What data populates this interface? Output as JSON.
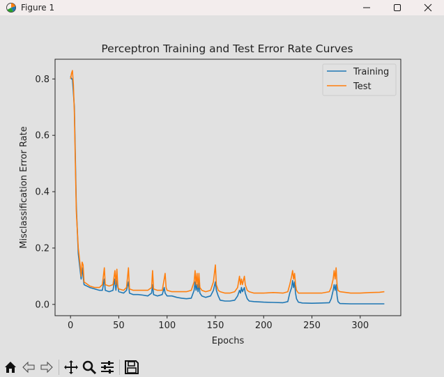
{
  "window": {
    "title": "Figure 1",
    "controls": [
      "minimize-icon",
      "maximize-icon",
      "close-icon"
    ],
    "app_icon": "matplotlib-figure-icon"
  },
  "toolbar": {
    "buttons": [
      {
        "name": "home-icon",
        "tooltip": "Reset original view"
      },
      {
        "name": "back-icon",
        "tooltip": "Back to previous view"
      },
      {
        "name": "forward-icon",
        "tooltip": "Forward to next view"
      },
      {
        "name": "pan-icon",
        "tooltip": "Pan axes"
      },
      {
        "name": "zoom-icon",
        "tooltip": "Zoom to rectangle"
      },
      {
        "name": "subplots-icon",
        "tooltip": "Configure subplots"
      },
      {
        "name": "save-icon",
        "tooltip": "Save the figure"
      }
    ]
  },
  "colors": {
    "training": "#1f77b4",
    "test": "#ff7f0e",
    "axes_bg": "#e1e1e1",
    "text": "#222222"
  },
  "chart_data": {
    "type": "line",
    "title": "Perceptron Training and Test Error Rate Curves",
    "xlabel": "Epochs",
    "ylabel": "Misclassification Error Rate",
    "xlim": [
      -16,
      342
    ],
    "ylim": [
      -0.04,
      0.87
    ],
    "xticks": [
      0,
      50,
      100,
      150,
      200,
      250,
      300
    ],
    "xtick_labels": [
      "0",
      "50",
      "100",
      "150",
      "200",
      "250",
      "300"
    ],
    "yticks": [
      0.0,
      0.2,
      0.4,
      0.6,
      0.8
    ],
    "ytick_labels": [
      "0.0",
      "0.2",
      "0.4",
      "0.6",
      "0.8"
    ],
    "grid": false,
    "legend": {
      "position": "top-right",
      "entries": [
        "Training",
        "Test"
      ]
    },
    "series": [
      {
        "name": "Training",
        "color": "#1f77b4",
        "points": [
          [
            0,
            0.81
          ],
          [
            1,
            0.8
          ],
          [
            2,
            0.8
          ],
          [
            4,
            0.7
          ],
          [
            6,
            0.35
          ],
          [
            8,
            0.18
          ],
          [
            10,
            0.12
          ],
          [
            11,
            0.09
          ],
          [
            12,
            0.13
          ],
          [
            13,
            0.1
          ],
          [
            14,
            0.07
          ],
          [
            20,
            0.06
          ],
          [
            25,
            0.055
          ],
          [
            30,
            0.05
          ],
          [
            33,
            0.05
          ],
          [
            35,
            0.09
          ],
          [
            36,
            0.05
          ],
          [
            40,
            0.045
          ],
          [
            44,
            0.05
          ],
          [
            46,
            0.09
          ],
          [
            47,
            0.05
          ],
          [
            48,
            0.085
          ],
          [
            50,
            0.045
          ],
          [
            55,
            0.04
          ],
          [
            58,
            0.05
          ],
          [
            60,
            0.08
          ],
          [
            61,
            0.04
          ],
          [
            65,
            0.035
          ],
          [
            70,
            0.035
          ],
          [
            75,
            0.033
          ],
          [
            80,
            0.03
          ],
          [
            84,
            0.04
          ],
          [
            85,
            0.07
          ],
          [
            86,
            0.035
          ],
          [
            90,
            0.03
          ],
          [
            95,
            0.035
          ],
          [
            97,
            0.06
          ],
          [
            98,
            0.04
          ],
          [
            100,
            0.03
          ],
          [
            105,
            0.03
          ],
          [
            110,
            0.025
          ],
          [
            115,
            0.022
          ],
          [
            120,
            0.02
          ],
          [
            125,
            0.022
          ],
          [
            128,
            0.05
          ],
          [
            129,
            0.08
          ],
          [
            130,
            0.05
          ],
          [
            131,
            0.07
          ],
          [
            132,
            0.045
          ],
          [
            133,
            0.08
          ],
          [
            134,
            0.04
          ],
          [
            136,
            0.03
          ],
          [
            140,
            0.025
          ],
          [
            145,
            0.03
          ],
          [
            148,
            0.05
          ],
          [
            150,
            0.08
          ],
          [
            151,
            0.05
          ],
          [
            153,
            0.03
          ],
          [
            155,
            0.015
          ],
          [
            160,
            0.012
          ],
          [
            165,
            0.012
          ],
          [
            170,
            0.015
          ],
          [
            173,
            0.03
          ],
          [
            175,
            0.05
          ],
          [
            176,
            0.04
          ],
          [
            177,
            0.06
          ],
          [
            178,
            0.045
          ],
          [
            180,
            0.06
          ],
          [
            181,
            0.04
          ],
          [
            183,
            0.02
          ],
          [
            185,
            0.012
          ],
          [
            190,
            0.01
          ],
          [
            200,
            0.008
          ],
          [
            210,
            0.007
          ],
          [
            220,
            0.006
          ],
          [
            225,
            0.01
          ],
          [
            227,
            0.04
          ],
          [
            229,
            0.06
          ],
          [
            230,
            0.085
          ],
          [
            231,
            0.06
          ],
          [
            232,
            0.08
          ],
          [
            233,
            0.04
          ],
          [
            234,
            0.02
          ],
          [
            236,
            0.008
          ],
          [
            240,
            0.005
          ],
          [
            250,
            0.004
          ],
          [
            260,
            0.005
          ],
          [
            268,
            0.006
          ],
          [
            270,
            0.02
          ],
          [
            272,
            0.05
          ],
          [
            273,
            0.07
          ],
          [
            274,
            0.05
          ],
          [
            275,
            0.07
          ],
          [
            276,
            0.03
          ],
          [
            277,
            0.01
          ],
          [
            279,
            0.003
          ],
          [
            290,
            0.002
          ],
          [
            300,
            0.002
          ],
          [
            310,
            0.002
          ],
          [
            320,
            0.002
          ],
          [
            325,
            0.002
          ]
        ]
      },
      {
        "name": "Test",
        "color": "#ff7f0e",
        "points": [
          [
            0,
            0.8
          ],
          [
            1,
            0.82
          ],
          [
            2,
            0.83
          ],
          [
            3,
            0.78
          ],
          [
            4,
            0.68
          ],
          [
            5,
            0.5
          ],
          [
            6,
            0.33
          ],
          [
            8,
            0.2
          ],
          [
            10,
            0.14
          ],
          [
            11,
            0.1
          ],
          [
            12,
            0.15
          ],
          [
            13,
            0.14
          ],
          [
            14,
            0.08
          ],
          [
            20,
            0.065
          ],
          [
            25,
            0.06
          ],
          [
            30,
            0.06
          ],
          [
            33,
            0.07
          ],
          [
            35,
            0.13
          ],
          [
            36,
            0.07
          ],
          [
            40,
            0.065
          ],
          [
            44,
            0.07
          ],
          [
            46,
            0.12
          ],
          [
            47,
            0.07
          ],
          [
            48,
            0.125
          ],
          [
            49,
            0.06
          ],
          [
            50,
            0.055
          ],
          [
            55,
            0.05
          ],
          [
            58,
            0.06
          ],
          [
            60,
            0.13
          ],
          [
            61,
            0.055
          ],
          [
            65,
            0.05
          ],
          [
            70,
            0.05
          ],
          [
            75,
            0.05
          ],
          [
            80,
            0.05
          ],
          [
            84,
            0.06
          ],
          [
            85,
            0.12
          ],
          [
            86,
            0.055
          ],
          [
            90,
            0.05
          ],
          [
            95,
            0.05
          ],
          [
            97,
            0.09
          ],
          [
            98,
            0.11
          ],
          [
            99,
            0.06
          ],
          [
            100,
            0.05
          ],
          [
            105,
            0.045
          ],
          [
            110,
            0.045
          ],
          [
            115,
            0.045
          ],
          [
            120,
            0.045
          ],
          [
            125,
            0.05
          ],
          [
            128,
            0.08
          ],
          [
            129,
            0.12
          ],
          [
            130,
            0.07
          ],
          [
            131,
            0.11
          ],
          [
            132,
            0.06
          ],
          [
            133,
            0.11
          ],
          [
            134,
            0.06
          ],
          [
            136,
            0.05
          ],
          [
            140,
            0.045
          ],
          [
            145,
            0.05
          ],
          [
            148,
            0.08
          ],
          [
            150,
            0.14
          ],
          [
            151,
            0.07
          ],
          [
            153,
            0.05
          ],
          [
            155,
            0.045
          ],
          [
            160,
            0.04
          ],
          [
            165,
            0.04
          ],
          [
            170,
            0.045
          ],
          [
            173,
            0.06
          ],
          [
            175,
            0.1
          ],
          [
            176,
            0.07
          ],
          [
            177,
            0.09
          ],
          [
            178,
            0.07
          ],
          [
            180,
            0.1
          ],
          [
            181,
            0.07
          ],
          [
            183,
            0.05
          ],
          [
            185,
            0.045
          ],
          [
            190,
            0.04
          ],
          [
            200,
            0.04
          ],
          [
            210,
            0.042
          ],
          [
            220,
            0.04
          ],
          [
            225,
            0.045
          ],
          [
            227,
            0.07
          ],
          [
            229,
            0.1
          ],
          [
            230,
            0.12
          ],
          [
            231,
            0.09
          ],
          [
            232,
            0.11
          ],
          [
            233,
            0.07
          ],
          [
            234,
            0.05
          ],
          [
            236,
            0.04
          ],
          [
            240,
            0.04
          ],
          [
            250,
            0.04
          ],
          [
            260,
            0.04
          ],
          [
            268,
            0.045
          ],
          [
            270,
            0.06
          ],
          [
            272,
            0.09
          ],
          [
            273,
            0.12
          ],
          [
            274,
            0.09
          ],
          [
            275,
            0.13
          ],
          [
            276,
            0.07
          ],
          [
            277,
            0.05
          ],
          [
            279,
            0.045
          ],
          [
            290,
            0.04
          ],
          [
            300,
            0.04
          ],
          [
            310,
            0.042
          ],
          [
            320,
            0.043
          ],
          [
            325,
            0.045
          ]
        ]
      }
    ]
  }
}
